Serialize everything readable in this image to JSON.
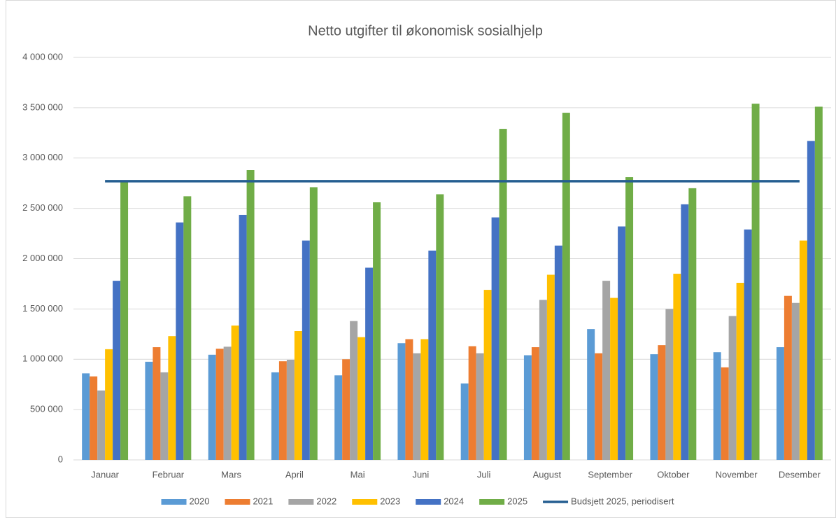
{
  "chart_data": {
    "type": "bar",
    "title": "Netto utgifter til økonomisk sosialhjelp",
    "categories": [
      "Januar",
      "Februar",
      "Mars",
      "April",
      "Mai",
      "Juni",
      "Juli",
      "August",
      "September",
      "Oktober",
      "November",
      "Desember"
    ],
    "series": [
      {
        "name": "2020",
        "color": "#5b9bd5",
        "values": [
          860000,
          975000,
          1045000,
          870000,
          840000,
          1160000,
          760000,
          1040000,
          1300000,
          1050000,
          1070000,
          1120000
        ]
      },
      {
        "name": "2021",
        "color": "#ed7d31",
        "values": [
          830000,
          1120000,
          1105000,
          980000,
          1000000,
          1200000,
          1130000,
          1120000,
          1060000,
          1140000,
          920000,
          1630000
        ]
      },
      {
        "name": "2022",
        "color": "#a5a5a5",
        "values": [
          690000,
          870000,
          1125000,
          995000,
          1380000,
          1060000,
          1060000,
          1590000,
          1780000,
          1500000,
          1430000,
          1560000
        ]
      },
      {
        "name": "2023",
        "color": "#ffc000",
        "values": [
          1100000,
          1230000,
          1335000,
          1280000,
          1220000,
          1200000,
          1690000,
          1840000,
          1610000,
          1850000,
          1760000,
          2180000
        ]
      },
      {
        "name": "2024",
        "color": "#4472c4",
        "values": [
          1780000,
          2360000,
          2435000,
          2180000,
          1910000,
          2080000,
          2410000,
          2130000,
          2320000,
          2540000,
          2290000,
          3170000
        ]
      },
      {
        "name": "2025",
        "color": "#70ad47",
        "values": [
          2760000,
          2620000,
          2880000,
          2710000,
          2560000,
          2640000,
          3290000,
          3450000,
          2810000,
          2700000,
          3540000,
          3510000
        ]
      },
      {
        "name": "Budsjett 2025, periodisert",
        "color": "#255e91",
        "type": "line",
        "values": [
          2770000,
          2770000,
          2770000,
          2770000,
          2770000,
          2770000,
          2770000,
          2770000,
          2770000,
          2770000,
          2770000,
          2770000
        ]
      }
    ],
    "ylim": [
      0,
      4000000
    ],
    "yticks": [
      0,
      {
        "value": 500000,
        "label": "500 000"
      },
      {
        "value": 1000000,
        "label": "1 000 000"
      },
      {
        "value": 1500000,
        "label": "1 500 000"
      },
      {
        "value": 2000000,
        "label": "2 000 000"
      },
      {
        "value": 2500000,
        "label": "2 500 000"
      },
      {
        "value": 3000000,
        "label": "3 000 000"
      },
      {
        "value": 3500000,
        "label": "3 500 000"
      },
      {
        "value": 4000000,
        "label": "4 000 000"
      }
    ],
    "grid": true,
    "legend": "bottom"
  }
}
